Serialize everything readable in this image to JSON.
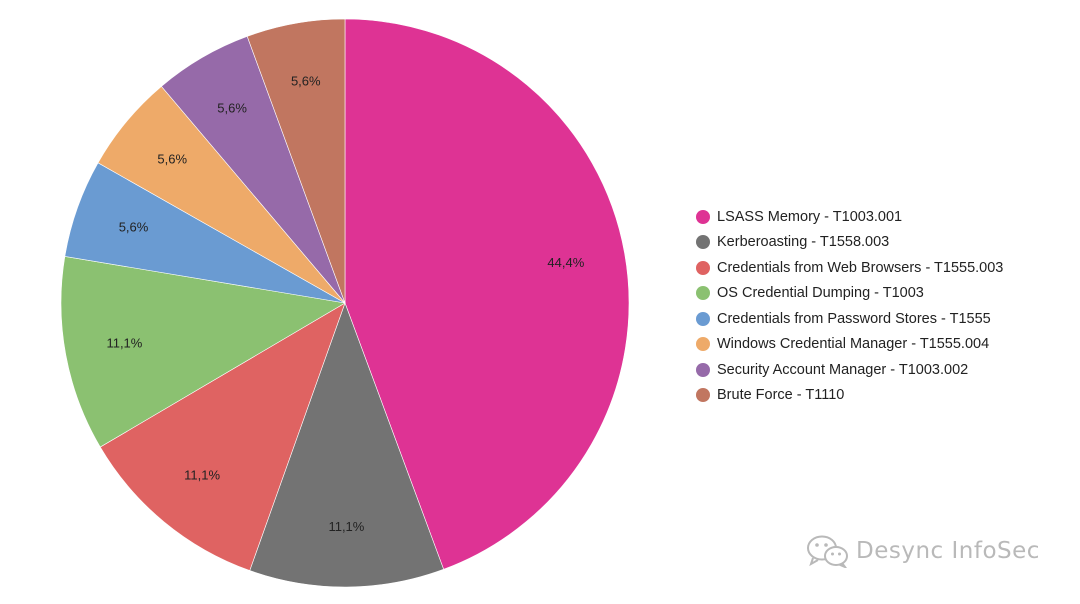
{
  "chart_data": {
    "type": "pie",
    "categories": [
      "LSASS Memory - T1003.001",
      "Kerberoasting - T1558.003",
      "Credentials from Web Browsers - T1555.003",
      "OS Credential Dumping - T1003",
      "Credentials from Password Stores - T1555",
      "Windows Credential Manager - T1555.004",
      "Security Account Manager - T1003.002",
      "Brute Force - T1110"
    ],
    "values": [
      44.4,
      11.1,
      11.1,
      11.1,
      5.6,
      5.6,
      5.6,
      5.6
    ],
    "value_labels": [
      "44,4%",
      "11,1%",
      "11,1%",
      "11,1%",
      "5,6%",
      "5,6%",
      "5,6%",
      "5,6%"
    ],
    "colors": [
      "#de3394",
      "#737373",
      "#df6362",
      "#8bc171",
      "#6a9bd2",
      "#eeaa69",
      "#966aa9",
      "#c17660"
    ],
    "title": "",
    "legend_position": "right",
    "start_angle": "top",
    "direction": "clockwise"
  },
  "watermark": {
    "text": "Desync InfoSec",
    "icon": "wechat-icon"
  }
}
